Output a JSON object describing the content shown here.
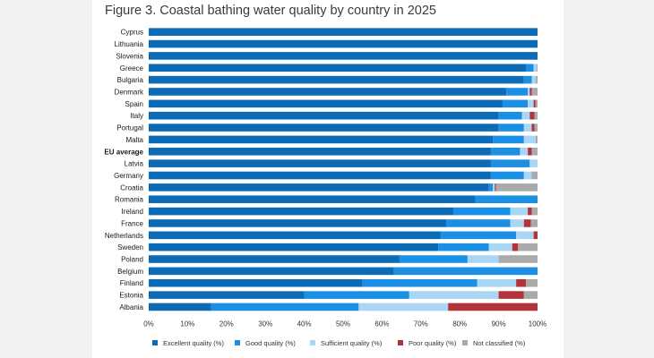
{
  "chart_data": {
    "type": "bar",
    "orientation": "horizontal",
    "stacked": true,
    "title": "Figure 3. Coastal bathing water quality by country in 2025",
    "categories": [
      "Cyprus",
      "Lithuania",
      "Slovenia",
      "Greece",
      "Bulgaria",
      "Denmark",
      "Spain",
      "Italy",
      "Portugal",
      "Malta",
      "EU average",
      "Latvia",
      "Germany",
      "Croatia",
      "Romania",
      "Ireland",
      "France",
      "Netherlands",
      "Sweden",
      "Poland",
      "Belgium",
      "Finland",
      "Estonia",
      "Albania"
    ],
    "bold_categories": [
      "EU average"
    ],
    "series": [
      {
        "name": "Excellent quality (%)",
        "color": "#0d6bb5",
        "values": [
          100,
          100,
          100,
          97,
          96.5,
          92,
          91,
          90,
          90,
          88.5,
          88,
          88,
          88,
          87.5,
          84,
          78.5,
          76.5,
          75,
          74.5,
          64.5,
          63,
          55,
          40,
          16
        ]
      },
      {
        "name": "Good quality (%)",
        "color": "#1a8fe3",
        "values": [
          0,
          0,
          0,
          2,
          2,
          5.5,
          6.5,
          6,
          6.5,
          8,
          7.5,
          10,
          8.5,
          1,
          16,
          14.5,
          16.5,
          19.5,
          13,
          17.5,
          37,
          29.5,
          27,
          38
        ]
      },
      {
        "name": "Sufficient quality (%)",
        "color": "#a9d6f5",
        "values": [
          0,
          0,
          0,
          0.7,
          1,
          0.5,
          1.5,
          2,
          2,
          3,
          2,
          2,
          2,
          0.5,
          0,
          4.5,
          3.5,
          4.5,
          6,
          8,
          0,
          10,
          23,
          23
        ]
      },
      {
        "name": "Poor quality (%)",
        "color": "#b3333a",
        "values": [
          0,
          0,
          0,
          0,
          0,
          0.5,
          0.5,
          1.2,
          0.7,
          0,
          1,
          0,
          0,
          0.3,
          0,
          1,
          1.8,
          1,
          1.5,
          0,
          0,
          2.5,
          6.5,
          23
        ]
      },
      {
        "name": "Not classified (%)",
        "color": "#aaaaaa",
        "values": [
          0,
          0,
          0,
          0.3,
          0.5,
          1.5,
          0.5,
          0.8,
          0.8,
          0.5,
          1.5,
          0,
          1.5,
          10.7,
          0,
          1.5,
          1.7,
          0,
          5,
          10,
          0,
          3,
          3.5,
          0
        ]
      }
    ],
    "xlim": [
      0,
      100
    ],
    "xticks": [
      "0%",
      "10%",
      "20%",
      "30%",
      "40%",
      "50%",
      "60%",
      "70%",
      "80%",
      "90%",
      "100%"
    ],
    "grid": false,
    "legend_position": "bottom"
  }
}
